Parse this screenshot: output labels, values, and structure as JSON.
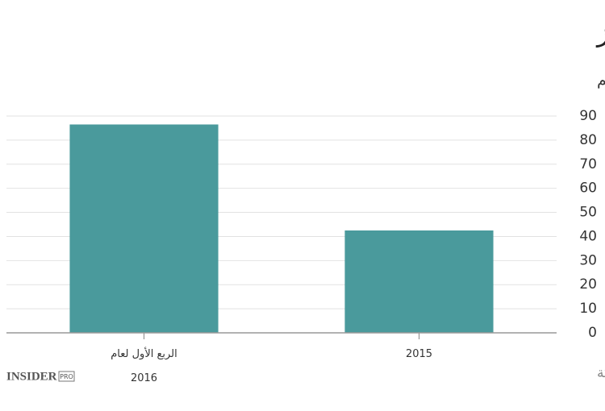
{
  "chart_data": {
    "type": "bar",
    "title": "تزايد الابتزاز",
    "subtitle": "عدد الهجمات المتتبعة من قبل خبراء التأمين Beazley للشركات المأمنة لديهم",
    "categories": [
      "الربع الأول لعام\n2016",
      "2015"
    ],
    "values": [
      86.5,
      42.5
    ],
    "color": "#4a9a9c",
    "ylim": [
      0,
      90
    ],
    "yticks": [
      0,
      10,
      20,
      30,
      40,
      50,
      60,
      70,
      80,
      90
    ],
    "grid": true,
    "source": "المصدر: تقاريرالشركة",
    "logo": {
      "name": "INSIDER",
      "badge": "PRO"
    }
  }
}
